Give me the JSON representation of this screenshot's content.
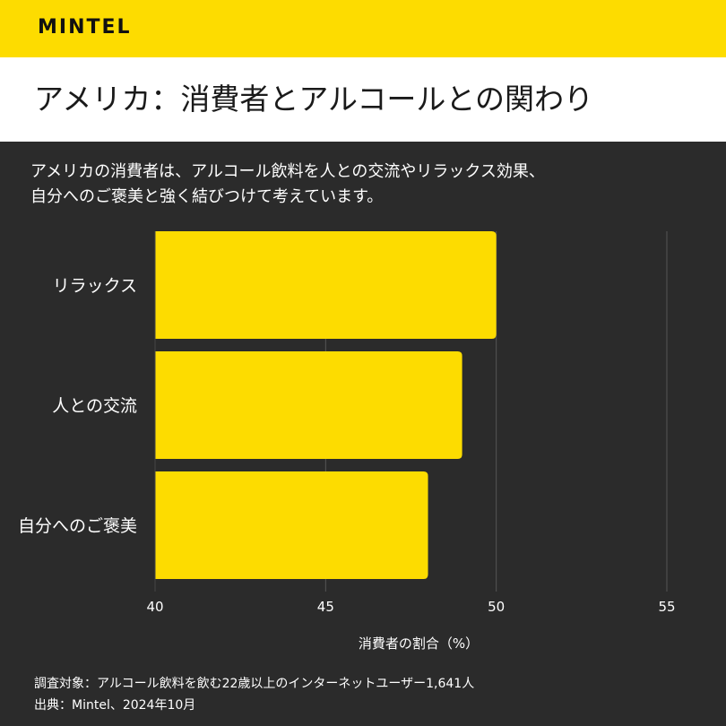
{
  "brand": {
    "logo_text": "MINTEL"
  },
  "header": {
    "title": "アメリカ：消費者とアルコールとの関わり"
  },
  "subtitle": {
    "line1": "アメリカの消費者は、アルコール飲料を人との交流やリラックス効果、",
    "line2": "自分へのご褒美と強く結びつけて考えています。"
  },
  "chart_data": {
    "type": "bar",
    "orientation": "horizontal",
    "categories": [
      "リラックス",
      "人との交流",
      "自分へのご褒美"
    ],
    "values": [
      50,
      49,
      48
    ],
    "xlabel": "消費者の割合（%）",
    "xlim": [
      40,
      55
    ],
    "xticks": [
      "40",
      "45",
      "50",
      "55"
    ],
    "grid": true,
    "bar_color": "#fddc00",
    "grid_color": "#555555"
  },
  "footer": {
    "survey": "調査対象：アルコール飲料を飲む22歳以上のインターネットユーザー1,641人",
    "source": "出典：Mintel、2024年10月"
  },
  "colors": {
    "accent": "#fddc00",
    "background": "#2b2b2b",
    "title_band": "#ffffff"
  }
}
